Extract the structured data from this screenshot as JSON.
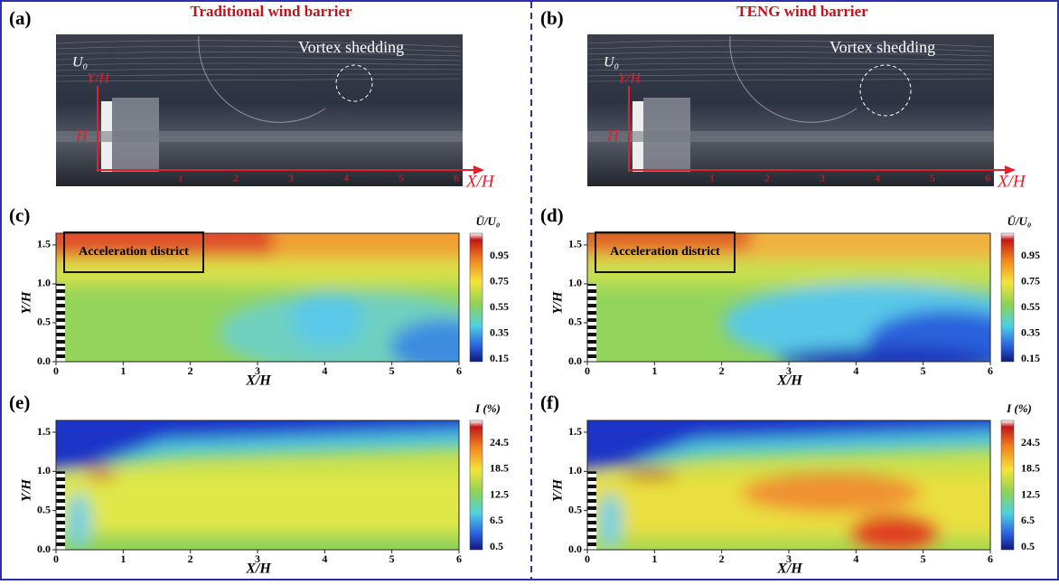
{
  "panels": [
    {
      "label": "(a)",
      "title": "Traditional wind barrier",
      "photo": {
        "u0": "U₀",
        "y_axis": "Y/H",
        "height": "H",
        "annotation": "Vortex shedding",
        "x_axis": "X/H",
        "x_ticks": [
          "1",
          "2",
          "3",
          "4",
          "5",
          "6"
        ]
      },
      "plots": [
        {
          "label": "(c)",
          "x_label": "X/H",
          "y_label": "Y/H",
          "xticks": [
            "0",
            "1",
            "2",
            "3",
            "4",
            "5",
            "6"
          ],
          "yticks": [
            "0.0",
            "0.5",
            "1.0",
            "1.5"
          ],
          "annotation": "Acceleration district",
          "colorbar": {
            "title": "Ū/U₀",
            "ticks": [
              "0.95",
              "0.75",
              "0.55",
              "0.35",
              "0.15"
            ]
          }
        },
        {
          "label": "(e)",
          "x_label": "X/H",
          "y_label": "Y/H",
          "xticks": [
            "0",
            "1",
            "2",
            "3",
            "4",
            "5",
            "6"
          ],
          "yticks": [
            "0.0",
            "0.5",
            "1.0",
            "1.5"
          ],
          "colorbar": {
            "title": "I (%)",
            "ticks": [
              "24.5",
              "18.5",
              "12.5",
              "6.5",
              "0.5"
            ]
          }
        }
      ]
    },
    {
      "label": "(b)",
      "title": "TENG wind barrier",
      "photo": {
        "u0": "U₀",
        "y_axis": "Y/H",
        "height": "H",
        "annotation": "Vortex shedding",
        "x_axis": "X/H",
        "x_ticks": [
          "1",
          "2",
          "3",
          "4",
          "5",
          "6"
        ]
      },
      "plots": [
        {
          "label": "(d)",
          "x_label": "X/H",
          "y_label": "Y/H",
          "xticks": [
            "0",
            "1",
            "2",
            "3",
            "4",
            "5",
            "6"
          ],
          "yticks": [
            "0.0",
            "0.5",
            "1.0",
            "1.5"
          ],
          "annotation": "Acceleration district",
          "colorbar": {
            "title": "Ū/U₀",
            "ticks": [
              "0.95",
              "0.75",
              "0.55",
              "0.35",
              "0.15"
            ]
          }
        },
        {
          "label": "(f)",
          "x_label": "X/H",
          "y_label": "Y/H",
          "xticks": [
            "0",
            "1",
            "2",
            "3",
            "4",
            "5",
            "6"
          ],
          "yticks": [
            "0.0",
            "0.5",
            "1.0",
            "1.5"
          ],
          "colorbar": {
            "title": "I (%)",
            "ticks": [
              "24.5",
              "18.5",
              "12.5",
              "6.5",
              "0.5"
            ]
          }
        }
      ]
    }
  ]
}
